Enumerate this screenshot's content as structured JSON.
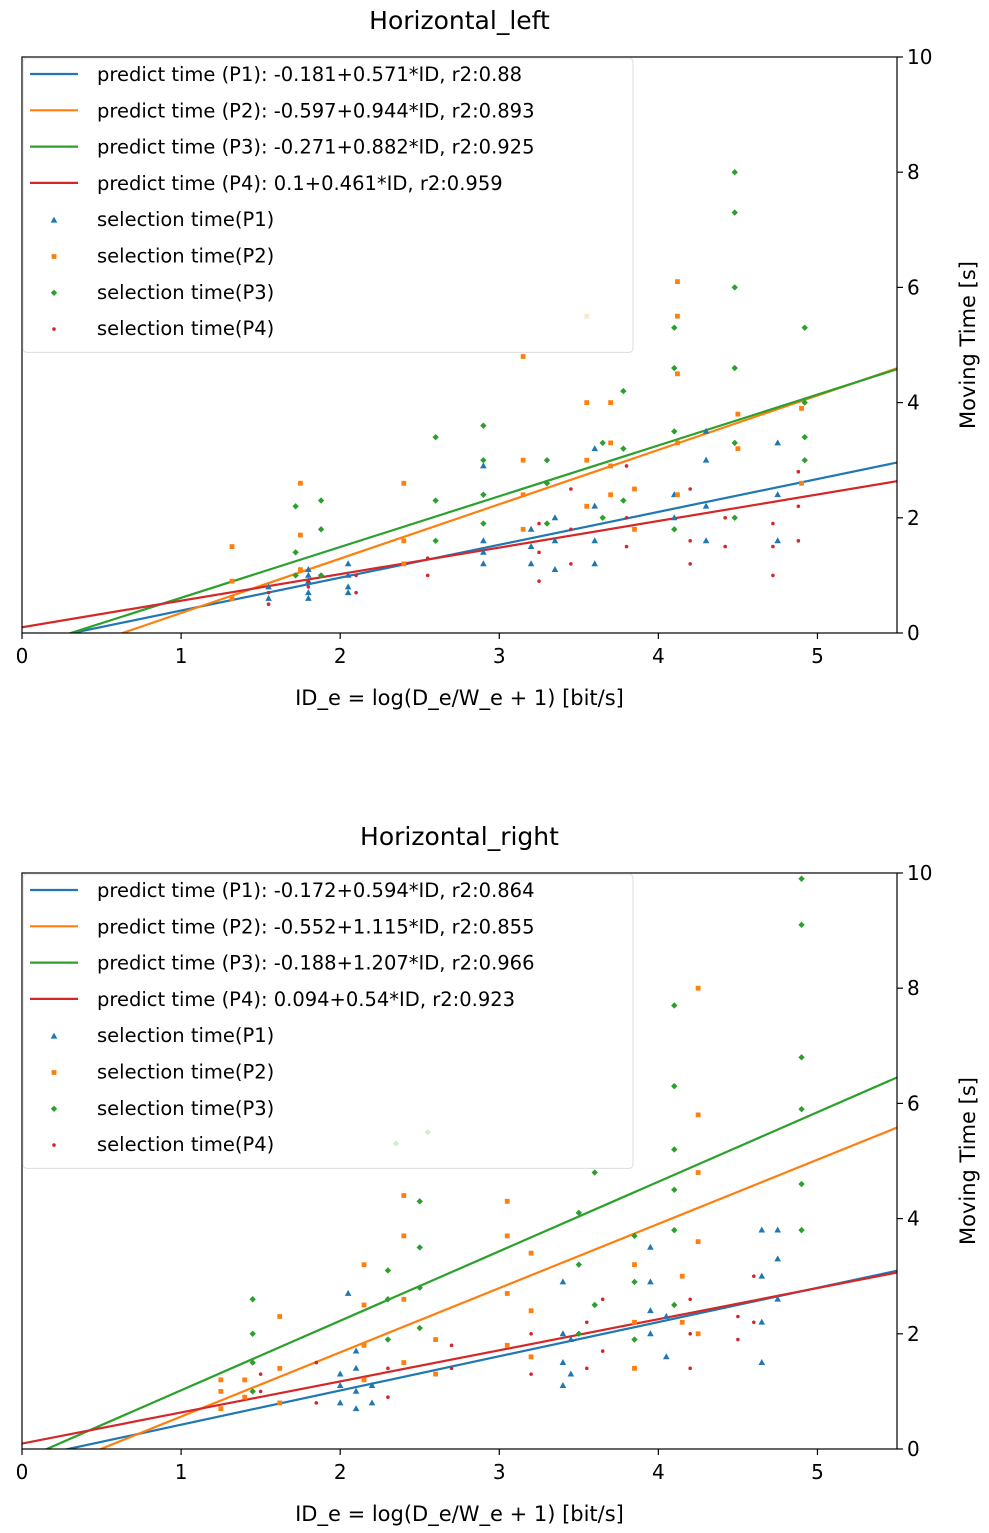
{
  "chart_data": [
    {
      "type": "scatter",
      "title": "Horizontal_left",
      "x_label": "ID_e = log(D_e/W_e + 1) [bit/s]",
      "y_label": "Moving Time [s]",
      "xlim": [
        0,
        5.5
      ],
      "ylim": [
        0,
        10
      ],
      "xticks": [
        0,
        1,
        2,
        3,
        4,
        5
      ],
      "yticks": [
        0,
        2,
        4,
        6,
        8,
        10
      ],
      "y_axis_side": "right",
      "legend": "upper left",
      "series": [
        {
          "name": "predict time (P1): -0.181+0.571*ID, r2:0.88",
          "kind": "line",
          "color": "#1f77b4",
          "x": [
            0,
            5.5
          ],
          "values": [
            -0.181,
            2.9595
          ]
        },
        {
          "name": "predict time (P2): -0.597+0.944*ID, r2:0.893",
          "kind": "line",
          "color": "#ff7f0e",
          "x": [
            0,
            5.5
          ],
          "values": [
            -0.597,
            4.595
          ]
        },
        {
          "name": "predict time (P3): -0.271+0.882*ID, r2:0.925",
          "kind": "line",
          "color": "#2ca02c",
          "x": [
            0,
            5.5
          ],
          "values": [
            -0.271,
            4.58
          ]
        },
        {
          "name": "predict time (P4): 0.1+0.461*ID, r2:0.959",
          "kind": "line",
          "color": "#d62728",
          "x": [
            0,
            5.5
          ],
          "values": [
            0.1,
            2.6355
          ]
        },
        {
          "name": "selection time(P1)",
          "kind": "scatter",
          "marker": "triangle",
          "color": "#1f77b4",
          "x": [
            1.55,
            1.55,
            1.8,
            1.8,
            1.8,
            1.8,
            1.8,
            2.05,
            2.05,
            2.05,
            2.05,
            2.9,
            2.9,
            2.9,
            2.9,
            3.2,
            3.2,
            3.2,
            3.35,
            3.35,
            3.35,
            3.6,
            3.6,
            3.6,
            3.6,
            4.1,
            4.1,
            4.3,
            4.3,
            4.3,
            4.3,
            4.75,
            4.75,
            4.75
          ],
          "values": [
            0.8,
            0.6,
            0.7,
            0.9,
            1.0,
            0.6,
            1.1,
            0.8,
            1.0,
            0.7,
            1.2,
            1.4,
            1.2,
            2.9,
            1.6,
            1.2,
            1.8,
            1.5,
            1.1,
            2.0,
            1.6,
            1.2,
            1.6,
            2.2,
            3.2,
            2.0,
            2.4,
            1.6,
            2.2,
            3.0,
            3.5,
            1.6,
            2.4,
            3.3
          ]
        },
        {
          "name": "selection time(P2)",
          "kind": "scatter",
          "marker": "square",
          "color": "#ff7f0e",
          "x": [
            1.32,
            1.32,
            1.32,
            1.75,
            1.75,
            1.75,
            2.4,
            2.4,
            2.4,
            3.15,
            3.15,
            3.15,
            3.15,
            3.55,
            3.55,
            3.55,
            3.55,
            3.7,
            3.7,
            3.7,
            3.7,
            3.85,
            3.85,
            4.12,
            4.12,
            4.12,
            4.12,
            4.12,
            4.5,
            4.5,
            4.9,
            4.9
          ],
          "values": [
            0.6,
            0.9,
            1.5,
            1.1,
            1.7,
            2.6,
            1.2,
            1.6,
            2.6,
            1.8,
            2.4,
            3.0,
            4.8,
            2.2,
            3.0,
            4.0,
            5.5,
            2.4,
            2.9,
            3.3,
            4.0,
            1.8,
            2.5,
            2.4,
            3.3,
            4.5,
            5.5,
            6.1,
            3.2,
            3.8,
            2.6,
            3.9
          ]
        },
        {
          "name": "selection time(P3)",
          "kind": "scatter",
          "marker": "diamond",
          "color": "#2ca02c",
          "x": [
            1.72,
            1.72,
            1.72,
            1.88,
            1.88,
            1.88,
            2.6,
            2.6,
            2.6,
            2.9,
            2.9,
            2.9,
            2.9,
            3.3,
            3.3,
            3.3,
            3.65,
            3.65,
            3.78,
            3.78,
            3.78,
            4.1,
            4.1,
            4.1,
            4.1,
            4.48,
            4.48,
            4.48,
            4.48,
            4.48,
            4.48,
            4.92,
            4.92,
            4.92,
            4.92
          ],
          "values": [
            1.0,
            1.4,
            2.2,
            1.0,
            1.8,
            2.3,
            1.6,
            2.3,
            3.4,
            1.9,
            2.4,
            3.0,
            3.6,
            1.9,
            2.6,
            3.0,
            2.0,
            3.3,
            2.3,
            3.2,
            4.2,
            1.8,
            3.5,
            4.6,
            5.3,
            2.0,
            3.3,
            4.6,
            6.0,
            7.3,
            8.0,
            3.0,
            3.4,
            4.0,
            5.3
          ]
        },
        {
          "name": "selection time(P4)",
          "kind": "scatter",
          "marker": "dot",
          "color": "#d62728",
          "x": [
            1.55,
            1.55,
            1.8,
            1.8,
            2.1,
            2.1,
            2.55,
            2.55,
            3.25,
            3.25,
            3.25,
            3.45,
            3.45,
            3.45,
            3.8,
            3.8,
            3.8,
            4.2,
            4.2,
            4.2,
            4.42,
            4.42,
            4.72,
            4.72,
            4.72,
            4.88,
            4.88,
            4.88
          ],
          "values": [
            0.5,
            0.7,
            0.8,
            0.9,
            0.7,
            1.0,
            1.0,
            1.3,
            0.9,
            1.4,
            1.9,
            1.2,
            1.8,
            2.5,
            1.5,
            2.0,
            2.9,
            1.2,
            1.6,
            2.5,
            1.5,
            2.0,
            1.0,
            1.5,
            1.9,
            1.6,
            2.2,
            2.8
          ]
        }
      ]
    },
    {
      "type": "scatter",
      "title": "Horizontal_right",
      "x_label": "ID_e = log(D_e/W_e + 1) [bit/s]",
      "y_label": "Moving Time [s]",
      "xlim": [
        0,
        5.5
      ],
      "ylim": [
        0,
        10
      ],
      "xticks": [
        0,
        1,
        2,
        3,
        4,
        5
      ],
      "yticks": [
        0,
        2,
        4,
        6,
        8,
        10
      ],
      "y_axis_side": "right",
      "legend": "upper left",
      "series": [
        {
          "name": "predict time (P1): -0.172+0.594*ID, r2:0.864",
          "kind": "line",
          "color": "#1f77b4",
          "x": [
            0,
            5.5
          ],
          "values": [
            -0.172,
            3.095
          ]
        },
        {
          "name": "predict time (P2): -0.552+1.115*ID, r2:0.855",
          "kind": "line",
          "color": "#ff7f0e",
          "x": [
            0,
            5.5
          ],
          "values": [
            -0.552,
            5.5805
          ]
        },
        {
          "name": "predict time (P3): -0.188+1.207*ID, r2:0.966",
          "kind": "line",
          "color": "#2ca02c",
          "x": [
            0,
            5.5
          ],
          "values": [
            -0.188,
            6.4505
          ]
        },
        {
          "name": "predict time (P4): 0.094+0.54*ID, r2:0.923",
          "kind": "line",
          "color": "#d62728",
          "x": [
            0,
            5.5
          ],
          "values": [
            0.094,
            3.064
          ]
        },
        {
          "name": "selection time(P1)",
          "kind": "scatter",
          "marker": "triangle",
          "color": "#1f77b4",
          "x": [
            2.0,
            2.0,
            2.0,
            2.1,
            2.1,
            2.1,
            2.1,
            2.2,
            2.2,
            2.05,
            3.4,
            3.4,
            3.4,
            3.4,
            3.45,
            3.45,
            3.95,
            3.95,
            3.95,
            3.95,
            4.05,
            4.05,
            4.65,
            4.65,
            4.65,
            4.65,
            4.75,
            4.75,
            4.75
          ],
          "values": [
            0.8,
            1.1,
            1.3,
            0.7,
            1.0,
            1.4,
            1.7,
            0.8,
            1.1,
            2.7,
            1.1,
            1.5,
            2.0,
            2.9,
            1.3,
            1.9,
            2.0,
            2.4,
            2.9,
            3.5,
            1.6,
            2.3,
            1.5,
            2.2,
            3.0,
            3.8,
            2.6,
            3.3,
            3.8
          ]
        },
        {
          "name": "selection time(P2)",
          "kind": "scatter",
          "marker": "square",
          "color": "#ff7f0e",
          "x": [
            1.25,
            1.25,
            1.25,
            1.4,
            1.4,
            1.62,
            1.62,
            1.62,
            2.15,
            2.15,
            2.15,
            2.15,
            2.4,
            2.4,
            2.4,
            2.4,
            2.6,
            2.6,
            3.05,
            3.05,
            3.05,
            3.05,
            3.2,
            3.2,
            3.2,
            3.85,
            3.85,
            3.85,
            4.25,
            4.25,
            4.25,
            4.25,
            4.25,
            4.15,
            4.15
          ],
          "values": [
            0.7,
            1.0,
            1.2,
            0.9,
            1.2,
            0.8,
            1.4,
            2.3,
            1.2,
            1.8,
            2.5,
            3.2,
            1.5,
            2.6,
            3.7,
            4.4,
            1.3,
            1.9,
            1.8,
            2.7,
            3.7,
            4.3,
            1.6,
            2.4,
            3.4,
            1.4,
            2.2,
            3.2,
            2.0,
            3.6,
            4.8,
            5.8,
            8.0,
            2.2,
            3.0
          ]
        },
        {
          "name": "selection time(P3)",
          "kind": "scatter",
          "marker": "diamond",
          "color": "#2ca02c",
          "x": [
            1.45,
            1.45,
            1.45,
            1.45,
            2.3,
            2.3,
            2.3,
            2.5,
            2.5,
            2.5,
            2.5,
            2.55,
            2.35,
            3.5,
            3.5,
            3.5,
            3.6,
            3.6,
            3.85,
            3.85,
            3.85,
            4.1,
            4.1,
            4.1,
            4.1,
            4.1,
            4.1,
            4.9,
            4.9,
            4.9,
            4.9,
            4.9,
            4.9
          ],
          "values": [
            1.0,
            1.5,
            2.0,
            2.6,
            1.9,
            2.6,
            3.1,
            2.1,
            2.8,
            3.5,
            4.3,
            5.5,
            5.3,
            2.0,
            3.2,
            4.1,
            2.5,
            4.8,
            1.9,
            2.9,
            3.7,
            2.5,
            3.8,
            4.5,
            5.2,
            6.3,
            7.7,
            3.8,
            4.6,
            5.9,
            6.8,
            9.1,
            9.9
          ]
        },
        {
          "name": "selection time(P4)",
          "kind": "scatter",
          "marker": "dot",
          "color": "#d62728",
          "x": [
            1.5,
            1.5,
            1.85,
            1.85,
            2.3,
            2.3,
            2.7,
            2.7,
            3.2,
            3.2,
            3.55,
            3.55,
            3.65,
            3.65,
            4.2,
            4.2,
            4.2,
            4.5,
            4.5,
            4.6,
            4.6
          ],
          "values": [
            1.3,
            1.0,
            0.8,
            1.5,
            0.9,
            1.4,
            1.4,
            1.8,
            1.3,
            2.0,
            1.4,
            2.2,
            1.7,
            2.6,
            1.4,
            2.0,
            2.6,
            1.9,
            2.3,
            2.2,
            3.0
          ]
        }
      ]
    }
  ]
}
